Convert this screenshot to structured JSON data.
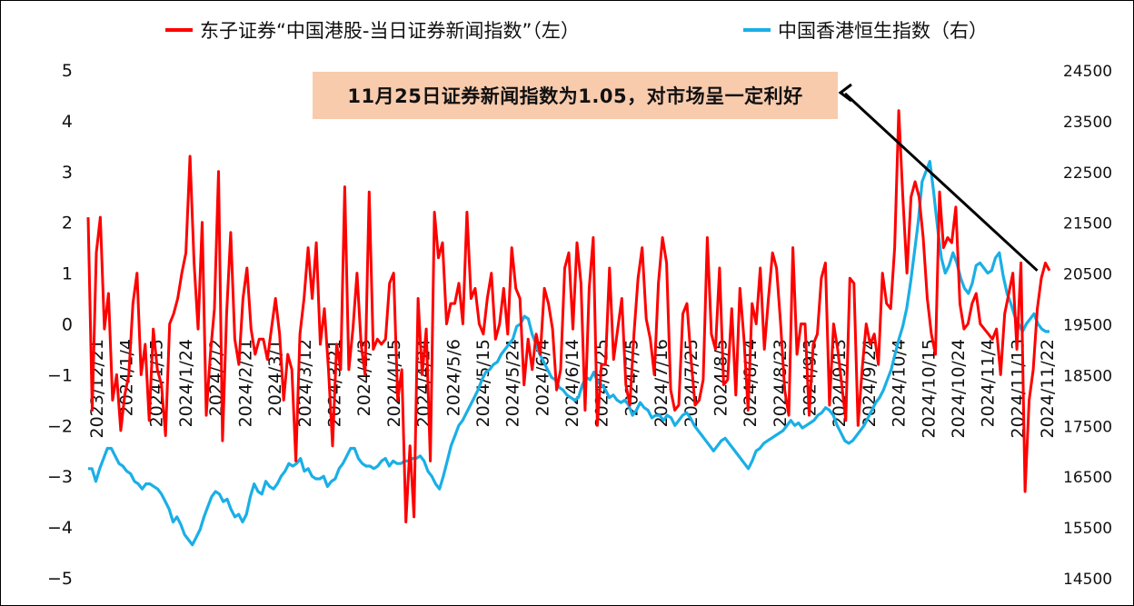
{
  "chart_data": {
    "type": "line",
    "title": "",
    "legend": {
      "placement": "top",
      "entries": [
        {
          "name": "东子证券“中国港股-当日证券新闻指数”（左）",
          "color": "#ff0000"
        },
        {
          "name": "中国香港恒生指数（右）",
          "color": "#1aafe6"
        }
      ]
    },
    "annotation": {
      "text": "11月25日证券新闻指数为1.05，对市场呈一定利好",
      "background": "#f8cbad",
      "arrow_target": {
        "x_index": 233,
        "y_left": 1.05
      }
    },
    "y_left": {
      "range": [
        -5,
        5
      ],
      "ticks": [
        "5",
        "4",
        "3",
        "2",
        "1",
        "0",
        "−1",
        "−2",
        "−3",
        "−4",
        "−5"
      ]
    },
    "y_right": {
      "range": [
        14500,
        24500
      ],
      "ticks": [
        "24500",
        "23500",
        "22500",
        "21500",
        "20500",
        "19500",
        "18500",
        "17500",
        "16500",
        "15500",
        "14500"
      ]
    },
    "x_ticks": [
      "2023/12/21",
      "2024/1/4",
      "2024/1/15",
      "2024/1/24",
      "2024/2/2",
      "2024/2/21",
      "2024/3/1",
      "2024/3/12",
      "2024/3/21",
      "2024/4/3",
      "2024/4/15",
      "2024/4/24",
      "2024/5/6",
      "2024/5/15",
      "2024/5/24",
      "2024/6/4",
      "2024/6/14",
      "2024/6/25",
      "2024/7/5",
      "2024/7/16",
      "2024/7/25",
      "2024/8/5",
      "2024/8/14",
      "2024/8/23",
      "2024/9/3",
      "2024/9/13",
      "2024/9/24",
      "2024/10/4",
      "2024/10/15",
      "2024/10/24",
      "2024/11/4",
      "2024/11/13",
      "2024/11/22"
    ],
    "series": [
      {
        "name": "东子证券“中国港股-当日证券新闻指数”（左）",
        "axis": "left",
        "color": "#ff0000",
        "values": [
          2.1,
          -1.7,
          1.4,
          2.1,
          -0.1,
          0.6,
          -1.5,
          -1.0,
          -2.1,
          -1.4,
          -1.0,
          0.4,
          1.0,
          -1.0,
          -0.4,
          -1.9,
          -0.1,
          -0.9,
          -1.2,
          -2.2,
          0.0,
          0.2,
          0.5,
          1.0,
          1.4,
          3.3,
          1.2,
          -0.1,
          2.0,
          -1.8,
          -0.6,
          0.3,
          3.0,
          -2.3,
          0.2,
          1.8,
          -0.3,
          -0.8,
          0.5,
          1.1,
          -0.1,
          -0.6,
          -0.3,
          -0.3,
          -0.7,
          -0.1,
          0.5,
          -0.2,
          -1.5,
          -0.6,
          -0.9,
          -2.7,
          -0.2,
          0.5,
          1.5,
          0.5,
          1.6,
          -0.4,
          0.3,
          -0.9,
          -2.4,
          -0.4,
          -0.9,
          2.7,
          -0.9,
          -0.1,
          1.0,
          -0.4,
          -1.0,
          2.6,
          -0.5,
          -0.3,
          -0.4,
          -0.3,
          0.8,
          1.0,
          -1.5,
          -0.9,
          -3.9,
          -2.4,
          -3.8,
          0.5,
          -1.0,
          -0.1,
          -2.7,
          2.2,
          1.3,
          1.6,
          0.0,
          0.4,
          0.4,
          0.8,
          0.0,
          2.2,
          0.5,
          0.7,
          0.0,
          -0.2,
          0.5,
          1.0,
          -0.3,
          0.0,
          0.7,
          -0.2,
          1.5,
          0.7,
          0.5,
          -1.2,
          -0.3,
          -0.9,
          -0.2,
          -0.6,
          0.7,
          0.4,
          -0.1,
          -1.3,
          -0.9,
          1.1,
          1.4,
          -0.1,
          1.6,
          0.8,
          -1.7,
          0.7,
          1.7,
          -2.0,
          -0.8,
          -0.8,
          1.1,
          -0.7,
          -0.1,
          0.5,
          -1.2,
          -1.6,
          -0.2,
          0.9,
          1.5,
          0.1,
          -0.3,
          -1.0,
          0.8,
          1.7,
          1.2,
          -1.3,
          -1.7,
          -1.6,
          0.2,
          0.4,
          -0.7,
          -1.6,
          -1.5,
          -1.1,
          1.7,
          -0.2,
          -0.5,
          1.1,
          -1.2,
          -1.1,
          0.3,
          -1.4,
          0.7,
          -0.3,
          -1.7,
          0.4,
          0.0,
          1.1,
          -0.5,
          0.5,
          1.4,
          1.1,
          0.0,
          -1.3,
          -1.8,
          1.5,
          -0.6,
          0.0,
          0.0,
          -1.8,
          -0.4,
          -0.2,
          0.9,
          1.2,
          -1.6,
          0.0,
          -0.5,
          -1.2,
          -1.9,
          0.9,
          0.8,
          -2.0,
          -0.9,
          0.0,
          -0.4,
          -0.2,
          -0.8,
          1.0,
          0.4,
          0.3,
          1.5,
          4.2,
          2.5,
          1.0,
          2.5,
          2.8,
          2.5,
          1.7,
          0.5,
          -0.2,
          -0.6,
          2.6,
          1.5,
          1.7,
          1.6,
          2.3,
          0.4,
          -0.1,
          0.0,
          0.4,
          0.6,
          0.0,
          -0.1,
          -0.2,
          -0.3,
          -0.1,
          -1.0,
          0.2,
          0.6,
          1.0,
          -0.5,
          1.2,
          -3.3,
          -1.5,
          -0.9,
          0.3,
          0.9,
          1.2,
          1.05
        ]
      },
      {
        "name": "中国香港恒生指数（右）",
        "axis": "right",
        "color": "#1aafe6",
        "values": [
          16650,
          16650,
          16400,
          16650,
          16850,
          17050,
          17050,
          16900,
          16750,
          16700,
          16600,
          16550,
          16400,
          16350,
          16250,
          16350,
          16350,
          16300,
          16250,
          16150,
          16000,
          15850,
          15600,
          15700,
          15550,
          15350,
          15250,
          15150,
          15300,
          15450,
          15700,
          15900,
          16100,
          16200,
          16150,
          16000,
          16050,
          15850,
          15700,
          15750,
          15600,
          15750,
          16100,
          16350,
          16200,
          16150,
          16400,
          16300,
          16250,
          16350,
          16500,
          16600,
          16750,
          16700,
          16750,
          16850,
          16600,
          16650,
          16500,
          16450,
          16450,
          16500,
          16300,
          16400,
          16450,
          16650,
          16750,
          16900,
          17050,
          17050,
          16850,
          16750,
          16700,
          16700,
          16650,
          16700,
          16800,
          16850,
          16700,
          16800,
          16750,
          16750,
          16800,
          16800,
          16850,
          16850,
          16900,
          16800,
          16600,
          16500,
          16350,
          16250,
          16500,
          16800,
          17100,
          17300,
          17500,
          17600,
          17750,
          17900,
          18050,
          18200,
          18400,
          18550,
          18600,
          18700,
          18750,
          18900,
          19000,
          19100,
          19200,
          19450,
          19500,
          19650,
          19600,
          19300,
          19100,
          18900,
          18750,
          18600,
          18450,
          18400,
          18250,
          18200,
          18100,
          18050,
          18000,
          18050,
          18300,
          18450,
          18400,
          18550,
          18350,
          18300,
          18200,
          18050,
          18100,
          18000,
          17950,
          18000,
          17900,
          17700,
          17800,
          17950,
          17850,
          17800,
          17650,
          17700,
          17700,
          17600,
          17700,
          17650,
          17500,
          17600,
          17700,
          17750,
          17650,
          17500,
          17400,
          17300,
          17200,
          17100,
          17000,
          17100,
          17200,
          17250,
          17150,
          17050,
          16950,
          16850,
          16750,
          16650,
          16800,
          17000,
          17050,
          17150,
          17200,
          17250,
          17300,
          17350,
          17400,
          17500,
          17600,
          17500,
          17550,
          17450,
          17500,
          17550,
          17600,
          17700,
          17750,
          17850,
          17800,
          17700,
          17500,
          17350,
          17200,
          17150,
          17200,
          17300,
          17400,
          17500,
          17650,
          17800,
          17950,
          18050,
          18200,
          18400,
          18600,
          18900,
          19200,
          19450,
          19800,
          20300,
          20900,
          21500,
          22300,
          22500,
          22700,
          22100,
          21400,
          20800,
          20500,
          20650,
          20900,
          20700,
          20400,
          20200,
          20100,
          20300,
          20650,
          20700,
          20600,
          20500,
          20550,
          20800,
          20900,
          20450,
          20100,
          19900,
          19650,
          19500,
          19350,
          19500,
          19600,
          19700,
          19500,
          19400,
          19350,
          19350
        ]
      }
    ]
  }
}
